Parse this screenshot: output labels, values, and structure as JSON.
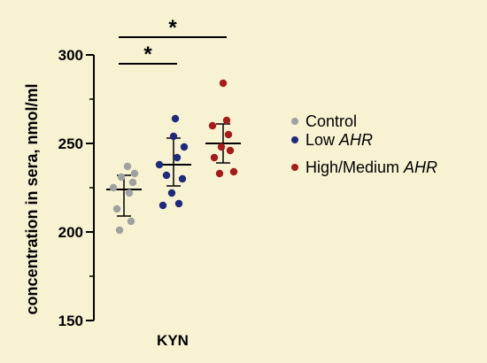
{
  "chart_data": {
    "type": "scatter",
    "ylabel": "concentration in sera, nmol/ml",
    "ylim": [
      150,
      300
    ],
    "yticks": [
      "150",
      "200",
      "250",
      "300"
    ],
    "category": "KYN",
    "series": [
      {
        "name": "Control",
        "name_main": "Control",
        "name_italic": "",
        "color": "#a0a0a0",
        "values": [
          201,
          206,
          213,
          222,
          225,
          228,
          231,
          233,
          237
        ],
        "mean": 224,
        "sd_low": 209,
        "sd_high": 232
      },
      {
        "name": "Low AHR",
        "name_main": "Low ",
        "name_italic": "AHR",
        "color": "#1f2a7a",
        "values": [
          215,
          216,
          222,
          230,
          232,
          238,
          242,
          248,
          254,
          264
        ],
        "mean": 238,
        "sd_low": 226,
        "sd_high": 253
      },
      {
        "name": "High/Medium AHR",
        "name_main": "High/Medium ",
        "name_italic": "AHR",
        "color": "#a31b1b",
        "values": [
          233,
          234,
          242,
          246,
          248,
          255,
          260,
          263,
          284
        ],
        "mean": 250,
        "sd_low": 239,
        "sd_high": 261
      }
    ],
    "significance": [
      {
        "from": 0,
        "to": 1,
        "label": "*"
      },
      {
        "from": 0,
        "to": 2,
        "label": "*"
      }
    ]
  }
}
